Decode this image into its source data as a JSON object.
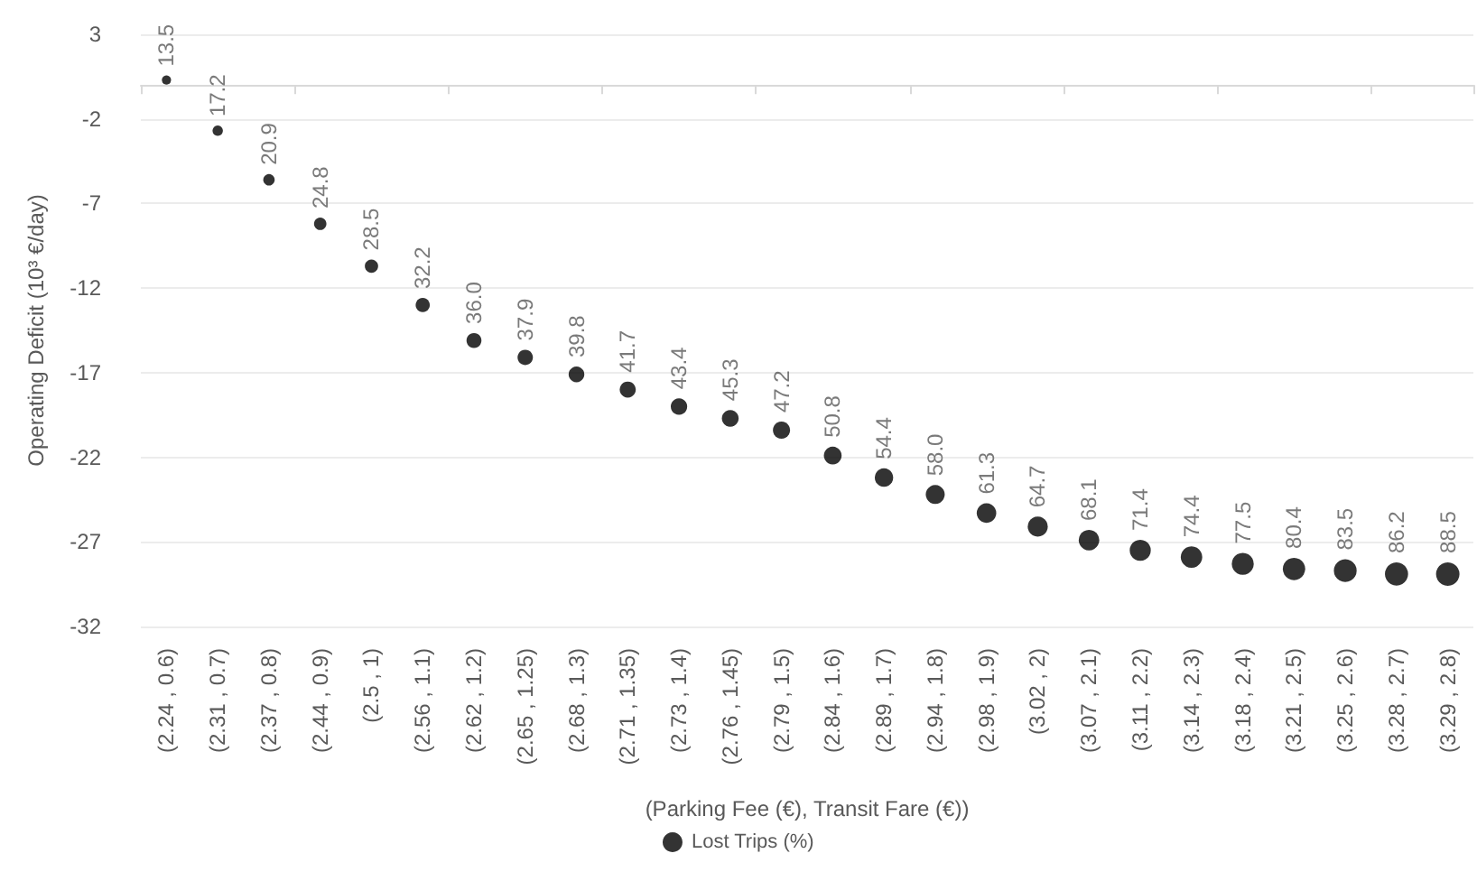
{
  "chart_data": {
    "type": "bubble",
    "xlabel": "(Parking Fee (€), Transit Fare (€))",
    "ylabel": "Operating Deficit (10³ €/day)",
    "categories": [
      "(2.24 , 0.6)",
      "(2.31 , 0.7)",
      "(2.37 , 0.8)",
      "(2.44 , 0.9)",
      "(2.5 , 1)",
      "(2.56 , 1.1)",
      "(2.62 , 1.2)",
      "(2.65 , 1.25)",
      "(2.68 , 1.3)",
      "(2.71 , 1.35)",
      "(2.73 , 1.4)",
      "(2.76 , 1.45)",
      "(2.79 , 1.5)",
      "(2.84 , 1.6)",
      "(2.89 , 1.7)",
      "(2.94 , 1.8)",
      "(2.98 , 1.9)",
      "(3.02 , 2)",
      "(3.07 , 2.1)",
      "(3.11 , 2.2)",
      "(3.14 , 2.3)",
      "(3.18 , 2.4)",
      "(3.21 , 2.5)",
      "(3.25 , 2.6)",
      "(3.28 , 2.7)",
      "(3.29 , 2.8)"
    ],
    "series": [
      {
        "name": "Lost Trips (%)",
        "color": "#000000",
        "values": [
          0.3,
          -2.7,
          -5.6,
          -8.2,
          -10.7,
          -13.0,
          -15.1,
          -16.1,
          -17.1,
          -18.0,
          -19.0,
          -19.7,
          -20.4,
          -21.9,
          -23.2,
          -24.2,
          -25.3,
          -26.1,
          -26.9,
          -27.5,
          -27.9,
          -28.3,
          -28.6,
          -28.7,
          -28.9,
          -28.9
        ],
        "sizes": [
          13.5,
          17.2,
          20.9,
          24.8,
          28.5,
          32.2,
          36.0,
          37.9,
          39.8,
          41.7,
          43.4,
          45.3,
          47.2,
          50.8,
          54.4,
          58.0,
          61.3,
          64.7,
          68.1,
          71.4,
          74.4,
          77.5,
          80.4,
          83.5,
          86.2,
          88.5
        ],
        "value_labels": [
          "13.5",
          "17.2",
          "20.9",
          "24.8",
          "28.5",
          "32.2",
          "36.0",
          "37.9",
          "39.8",
          "41.7",
          "43.4",
          "45.3",
          "47.2",
          "50.8",
          "54.4",
          "58.0",
          "61.3",
          "64.7",
          "68.1",
          "71.4",
          "74.4",
          "77.5",
          "80.4",
          "83.5",
          "86.2",
          "88.5"
        ]
      }
    ],
    "ylim": [
      -32,
      3
    ],
    "yticks": [
      -32,
      -27,
      -22,
      -17,
      -12,
      -7,
      -2,
      3
    ],
    "grid": "y",
    "legend": "bottom",
    "marker": "circle"
  }
}
